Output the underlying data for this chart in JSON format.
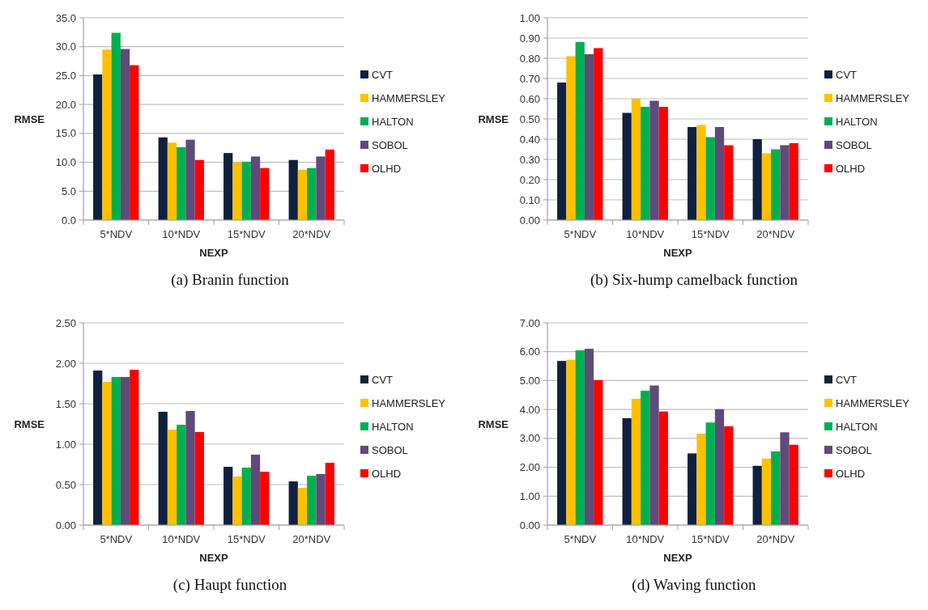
{
  "chart_data": [
    {
      "type": "bar",
      "title": "(a) Branin function",
      "xlabel": "NEXP",
      "ylabel": "RMSE",
      "categories": [
        "5*NDV",
        "10*NDV",
        "15*NDV",
        "20*NDV"
      ],
      "ylim": [
        0,
        35
      ],
      "yticks": [
        {
          "value": 0,
          "label": "0.0"
        },
        {
          "value": 5,
          "label": "5.0"
        },
        {
          "value": 10,
          "label": "10.0"
        },
        {
          "value": 15,
          "label": "15.0"
        },
        {
          "value": 20,
          "label": "20.0"
        },
        {
          "value": 25,
          "label": "25.0"
        },
        {
          "value": 30,
          "label": "30.0"
        },
        {
          "value": 35,
          "label": "35.0"
        }
      ],
      "grid": "y",
      "legend": "right",
      "series": [
        {
          "name": "CVT",
          "color": "#10213f",
          "values": [
            25.2,
            14.3,
            11.6,
            10.4
          ]
        },
        {
          "name": "HAMMERSLEY",
          "color": "#ffc000",
          "values": [
            29.5,
            13.4,
            10.0,
            8.7
          ]
        },
        {
          "name": "HALTON",
          "color": "#00b050",
          "values": [
            32.4,
            12.6,
            10.1,
            9.0
          ]
        },
        {
          "name": "SOBOL",
          "color": "#604a7b",
          "values": [
            29.6,
            13.9,
            11.0,
            11.0
          ]
        },
        {
          "name": "OLHD",
          "color": "#ff0000",
          "values": [
            26.8,
            10.4,
            9.0,
            12.2
          ]
        }
      ]
    },
    {
      "type": "bar",
      "title": "(b) Six-hump camelback function",
      "xlabel": "NEXP",
      "ylabel": "RMSE",
      "categories": [
        "5*NDV",
        "10*NDV",
        "15*NDV",
        "20*NDV"
      ],
      "ylim": [
        0,
        1
      ],
      "yticks": [
        {
          "value": 0,
          "label": "0.00"
        },
        {
          "value": 0.1,
          "label": "0.10"
        },
        {
          "value": 0.2,
          "label": "0.20"
        },
        {
          "value": 0.3,
          "label": "0.30"
        },
        {
          "value": 0.4,
          "label": "0.40"
        },
        {
          "value": 0.5,
          "label": "0.50"
        },
        {
          "value": 0.6,
          "label": "0.60"
        },
        {
          "value": 0.7,
          "label": "0.70"
        },
        {
          "value": 0.8,
          "label": "0.80"
        },
        {
          "value": 0.9,
          "label": "0.90"
        },
        {
          "value": 1,
          "label": "1.00"
        }
      ],
      "grid": "y",
      "legend": "right",
      "series": [
        {
          "name": "CVT",
          "color": "#10213f",
          "values": [
            0.68,
            0.53,
            0.46,
            0.4
          ]
        },
        {
          "name": "HAMMERSLEY",
          "color": "#ffc000",
          "values": [
            0.81,
            0.6,
            0.47,
            0.33
          ]
        },
        {
          "name": "HALTON",
          "color": "#00b050",
          "values": [
            0.88,
            0.56,
            0.41,
            0.35
          ]
        },
        {
          "name": "SOBOL",
          "color": "#604a7b",
          "values": [
            0.82,
            0.59,
            0.46,
            0.37
          ]
        },
        {
          "name": "OLHD",
          "color": "#ff0000",
          "values": [
            0.85,
            0.56,
            0.37,
            0.38
          ]
        }
      ]
    },
    {
      "type": "bar",
      "title": "(c) Haupt function",
      "xlabel": "NEXP",
      "ylabel": "RMSE",
      "categories": [
        "5*NDV",
        "10*NDV",
        "15*NDV",
        "20*NDV"
      ],
      "ylim": [
        0,
        2.5
      ],
      "yticks": [
        {
          "value": 0,
          "label": "0.00"
        },
        {
          "value": 0.5,
          "label": "0.50"
        },
        {
          "value": 1,
          "label": "1.00"
        },
        {
          "value": 1.5,
          "label": "1.50"
        },
        {
          "value": 2,
          "label": "2.00"
        },
        {
          "value": 2.5,
          "label": "2.50"
        }
      ],
      "grid": "y",
      "legend": "right",
      "series": [
        {
          "name": "CVT",
          "color": "#10213f",
          "values": [
            1.91,
            1.4,
            0.72,
            0.54
          ]
        },
        {
          "name": "HAMMERSLEY",
          "color": "#ffc000",
          "values": [
            1.77,
            1.18,
            0.6,
            0.46
          ]
        },
        {
          "name": "HALTON",
          "color": "#00b050",
          "values": [
            1.83,
            1.24,
            0.71,
            0.61
          ]
        },
        {
          "name": "SOBOL",
          "color": "#604a7b",
          "values": [
            1.83,
            1.41,
            0.87,
            0.63
          ]
        },
        {
          "name": "OLHD",
          "color": "#ff0000",
          "values": [
            1.92,
            1.15,
            0.66,
            0.77
          ]
        }
      ]
    },
    {
      "type": "bar",
      "title": "(d) Waving function",
      "xlabel": "NEXP",
      "ylabel": "RMSE",
      "categories": [
        "5*NDV",
        "10*NDV",
        "15*NDV",
        "20*NDV"
      ],
      "ylim": [
        0,
        7
      ],
      "yticks": [
        {
          "value": 0,
          "label": "0.00"
        },
        {
          "value": 1,
          "label": "1.00"
        },
        {
          "value": 2,
          "label": "2.00"
        },
        {
          "value": 3,
          "label": "3.00"
        },
        {
          "value": 4,
          "label": "4.00"
        },
        {
          "value": 5,
          "label": "5.00"
        },
        {
          "value": 6,
          "label": "6.00"
        },
        {
          "value": 7,
          "label": "7.00"
        }
      ],
      "grid": "y",
      "legend": "right",
      "series": [
        {
          "name": "CVT",
          "color": "#10213f",
          "values": [
            5.68,
            3.7,
            2.48,
            2.05
          ]
        },
        {
          "name": "HAMMERSLEY",
          "color": "#ffc000",
          "values": [
            5.72,
            4.37,
            3.16,
            2.3
          ]
        },
        {
          "name": "HALTON",
          "color": "#00b050",
          "values": [
            6.05,
            4.65,
            3.55,
            2.55
          ]
        },
        {
          "name": "SOBOL",
          "color": "#604a7b",
          "values": [
            6.1,
            4.83,
            4.01,
            3.21
          ]
        },
        {
          "name": "OLHD",
          "color": "#ff0000",
          "values": [
            5.02,
            3.93,
            3.42,
            2.78
          ]
        }
      ]
    }
  ]
}
